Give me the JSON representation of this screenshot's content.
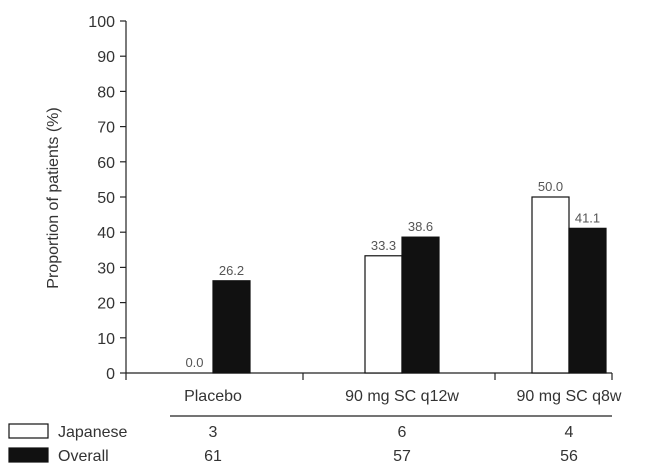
{
  "chart_data": {
    "type": "bar",
    "ylabel": "Proportion of patients (%)",
    "ylim": [
      0,
      100
    ],
    "yticks": [
      0,
      10,
      20,
      30,
      40,
      50,
      60,
      70,
      80,
      90,
      100
    ],
    "categories": [
      "Placebo",
      "90 mg SC q12w",
      "90 mg SC q8w"
    ],
    "series": [
      {
        "name": "Japanese",
        "color": "#ffffff",
        "values": [
          0.0,
          33.3,
          50.0
        ],
        "labels": [
          "0.0",
          "33.3",
          "50.0"
        ],
        "n": [
          "3",
          "6",
          "4"
        ]
      },
      {
        "name": "Overall",
        "color": "#111111",
        "values": [
          26.2,
          38.6,
          41.1
        ],
        "labels": [
          "26.2",
          "38.6",
          "41.1"
        ],
        "n": [
          "61",
          "57",
          "56"
        ]
      }
    ],
    "grid": false,
    "legend": "bottom-left"
  }
}
